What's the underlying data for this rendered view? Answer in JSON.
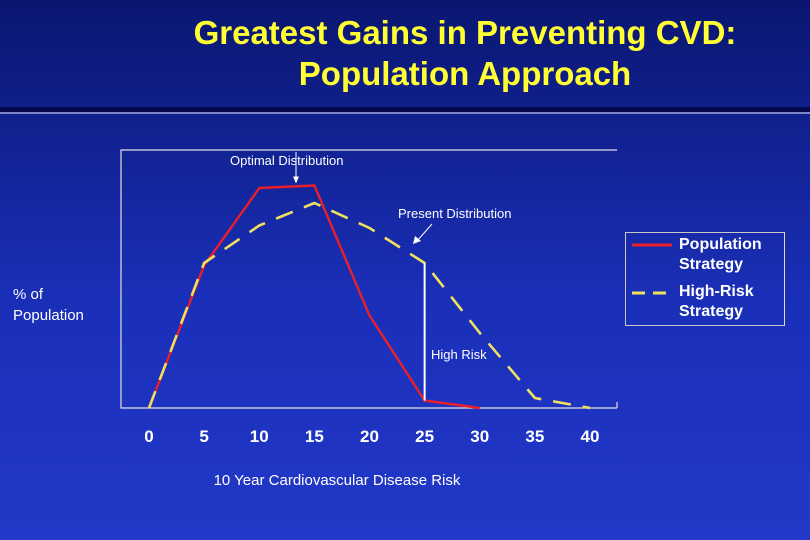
{
  "slide": {
    "title_line1": "Greatest Gains in Preventing CVD:",
    "title_line2": "Population Approach"
  },
  "colors": {
    "background": "#1a2fb8",
    "title": "#ffff33",
    "population_strategy": "#e8202a",
    "high_risk_strategy": "#f0e060"
  },
  "chart_data": {
    "type": "line",
    "xlabel": "10 Year Cardiovascular Disease Risk",
    "ylabel": "% of Population",
    "xlim": [
      0,
      40
    ],
    "xticks": [
      "0",
      "5",
      "10",
      "15",
      "20",
      "25",
      "30",
      "35",
      "40"
    ],
    "yticks_shown": false,
    "grid": false,
    "legend_position": "right",
    "series": [
      {
        "name": "Population Strategy",
        "style": "solid",
        "x": [
          0,
          5,
          10,
          15,
          20,
          25,
          30
        ],
        "y": [
          0,
          57,
          88,
          89,
          37,
          3,
          0
        ]
      },
      {
        "name": "High-Risk Strategy",
        "style": "dashed",
        "x": [
          0,
          5,
          10,
          15,
          20,
          25,
          30,
          35,
          40
        ],
        "y": [
          0,
          58,
          73,
          82,
          72,
          58,
          30,
          4,
          0
        ]
      }
    ],
    "threshold_line": {
      "x": 25,
      "label": "High Risk"
    },
    "annotations": [
      {
        "text": "Optimal Distribution",
        "points_to": {
          "x": 13.5,
          "y": 89
        }
      },
      {
        "text": "Present Distribution",
        "points_to": {
          "x": 24.5,
          "y": 61
        }
      }
    ]
  }
}
